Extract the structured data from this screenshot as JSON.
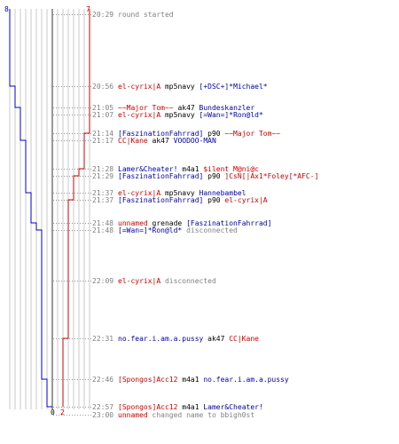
{
  "scoreboard": {
    "blue_start": "8",
    "red_start": "7",
    "blue_end": "0",
    "red_end": "2",
    "blue_color": "#0000cc",
    "red_color": "#cc0000"
  },
  "events": [
    {
      "time": "20:29",
      "parts": [
        {
          "t": "round started",
          "c": "gray"
        }
      ]
    },
    {
      "time": "20:56",
      "parts": [
        {
          "t": "el-cyrix|A",
          "c": "red"
        },
        {
          "t": " mp5navy ",
          "c": "black"
        },
        {
          "t": "[+DSC+]*Michael*",
          "c": "blue"
        }
      ]
    },
    {
      "time": "21:05",
      "parts": [
        {
          "t": "~~Major Tom~~",
          "c": "red"
        },
        {
          "t": " ak47 ",
          "c": "black"
        },
        {
          "t": "Bundeskanzler",
          "c": "blue"
        }
      ]
    },
    {
      "time": "21:07",
      "parts": [
        {
          "t": "el-cyrix|A",
          "c": "red"
        },
        {
          "t": " mp5navy ",
          "c": "black"
        },
        {
          "t": "[=Wan=]*Ron@ld*",
          "c": "blue"
        }
      ]
    },
    {
      "time": "21:14",
      "parts": [
        {
          "t": "[FaszinationFahrrad]",
          "c": "blue"
        },
        {
          "t": " p90 ",
          "c": "black"
        },
        {
          "t": "~~Major Tom~~",
          "c": "red"
        }
      ]
    },
    {
      "time": "21:17",
      "parts": [
        {
          "t": "CC|Kane",
          "c": "red"
        },
        {
          "t": " ak47 ",
          "c": "black"
        },
        {
          "t": "VOODOO-MAN",
          "c": "blue"
        }
      ]
    },
    {
      "time": "21:28",
      "parts": [
        {
          "t": "Lamer&Cheater!",
          "c": "blue"
        },
        {
          "t": " m4a1 ",
          "c": "black"
        },
        {
          "t": "$ilent M@ni@c",
          "c": "red"
        }
      ]
    },
    {
      "time": "21:29",
      "parts": [
        {
          "t": "[FaszinationFahrrad]",
          "c": "blue"
        },
        {
          "t": " p90 ",
          "c": "black"
        },
        {
          "t": "]CsN[|Ax1*Foley[*AFC-]",
          "c": "red"
        }
      ]
    },
    {
      "time": "21:37",
      "parts": [
        {
          "t": "el-cyrix|A",
          "c": "red"
        },
        {
          "t": " mp5navy ",
          "c": "black"
        },
        {
          "t": "Hannebambel",
          "c": "blue"
        }
      ]
    },
    {
      "time": "21:37",
      "parts": [
        {
          "t": "[FaszinationFahrrad]",
          "c": "blue"
        },
        {
          "t": " p90 ",
          "c": "black"
        },
        {
          "t": "el-cyrix|A",
          "c": "red"
        }
      ]
    },
    {
      "time": "21:48",
      "parts": [
        {
          "t": "unnamed",
          "c": "red"
        },
        {
          "t": " grenade ",
          "c": "black"
        },
        {
          "t": "[FaszinationFahrrad]",
          "c": "blue"
        }
      ]
    },
    {
      "time": "21:48",
      "parts": [
        {
          "t": "[=Wan=]*Ron@ld*",
          "c": "blue"
        },
        {
          "t": " disconnected",
          "c": "gray"
        }
      ]
    },
    {
      "time": "22:09",
      "parts": [
        {
          "t": "el-cyrix|A",
          "c": "red"
        },
        {
          "t": " disconnected",
          "c": "gray"
        }
      ]
    },
    {
      "time": "22:31",
      "parts": [
        {
          "t": "no.fear.i.am.a.pussy",
          "c": "blue"
        },
        {
          "t": " ak47 ",
          "c": "black"
        },
        {
          "t": "CC|Kane",
          "c": "red"
        }
      ]
    },
    {
      "time": "22:46",
      "parts": [
        {
          "t": "[Spongos]Acc12",
          "c": "red"
        },
        {
          "t": " m4a1 ",
          "c": "black"
        },
        {
          "t": "no.fear.i.am.a.pussy",
          "c": "blue"
        }
      ]
    },
    {
      "time": "22:57",
      "parts": [
        {
          "t": "[Spongos]Acc12",
          "c": "red"
        },
        {
          "t": " m4a1 ",
          "c": "black"
        },
        {
          "t": "Lamer&Cheater!",
          "c": "blue"
        }
      ]
    },
    {
      "time": "23:00",
      "parts": [
        {
          "t": "unnamed",
          "c": "red"
        },
        {
          "t": " changed name to bbigh0st",
          "c": "gray"
        }
      ]
    }
  ]
}
